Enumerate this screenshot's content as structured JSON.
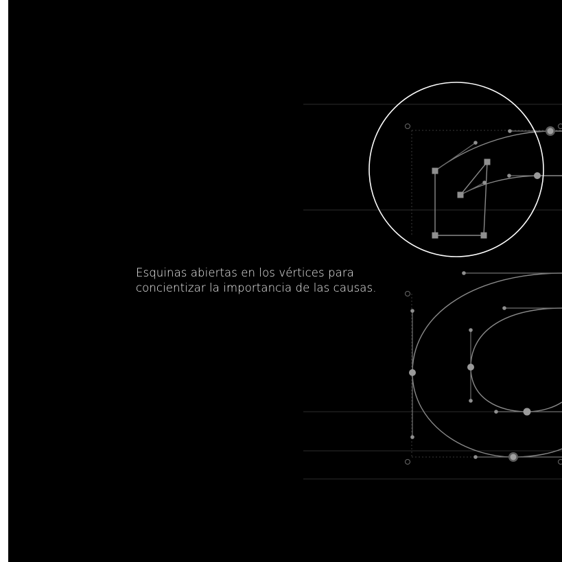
{
  "caption": {
    "line1": "Esquinas abiertas en los vértices para",
    "line2": "concientizar la importancia de las causas."
  },
  "colors": {
    "background": "#000000",
    "caption_text": "#f2f2f2",
    "guide_line": "#2b2b2b",
    "outline_curve": "#8a8a8a",
    "anchor_point": "#8f8f8f",
    "zoom_circle": "#ffffff"
  }
}
